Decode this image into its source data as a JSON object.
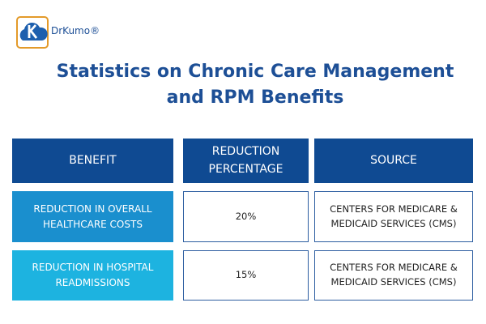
{
  "header": {
    "brand": "DrKumo®",
    "title": [
      "Statistics on Chronic Care Management",
      "and RPM Benefits"
    ]
  },
  "table": {
    "columns": [
      "BENEFIT",
      "REDUCTION PERCENTAGE",
      "SOURCE"
    ],
    "rows": [
      [
        "REDUCTION IN OVERALL HEALTHCARE COSTS",
        "20%",
        "CENTERS FOR MEDICARE & MEDICAID SERVICES (CMS)"
      ],
      [
        "REDUCTION IN HOSPITAL READMISSIONS",
        "15%",
        "CENTERS FOR MEDICARE & MEDICAID SERVICES (CMS)"
      ]
    ]
  }
}
